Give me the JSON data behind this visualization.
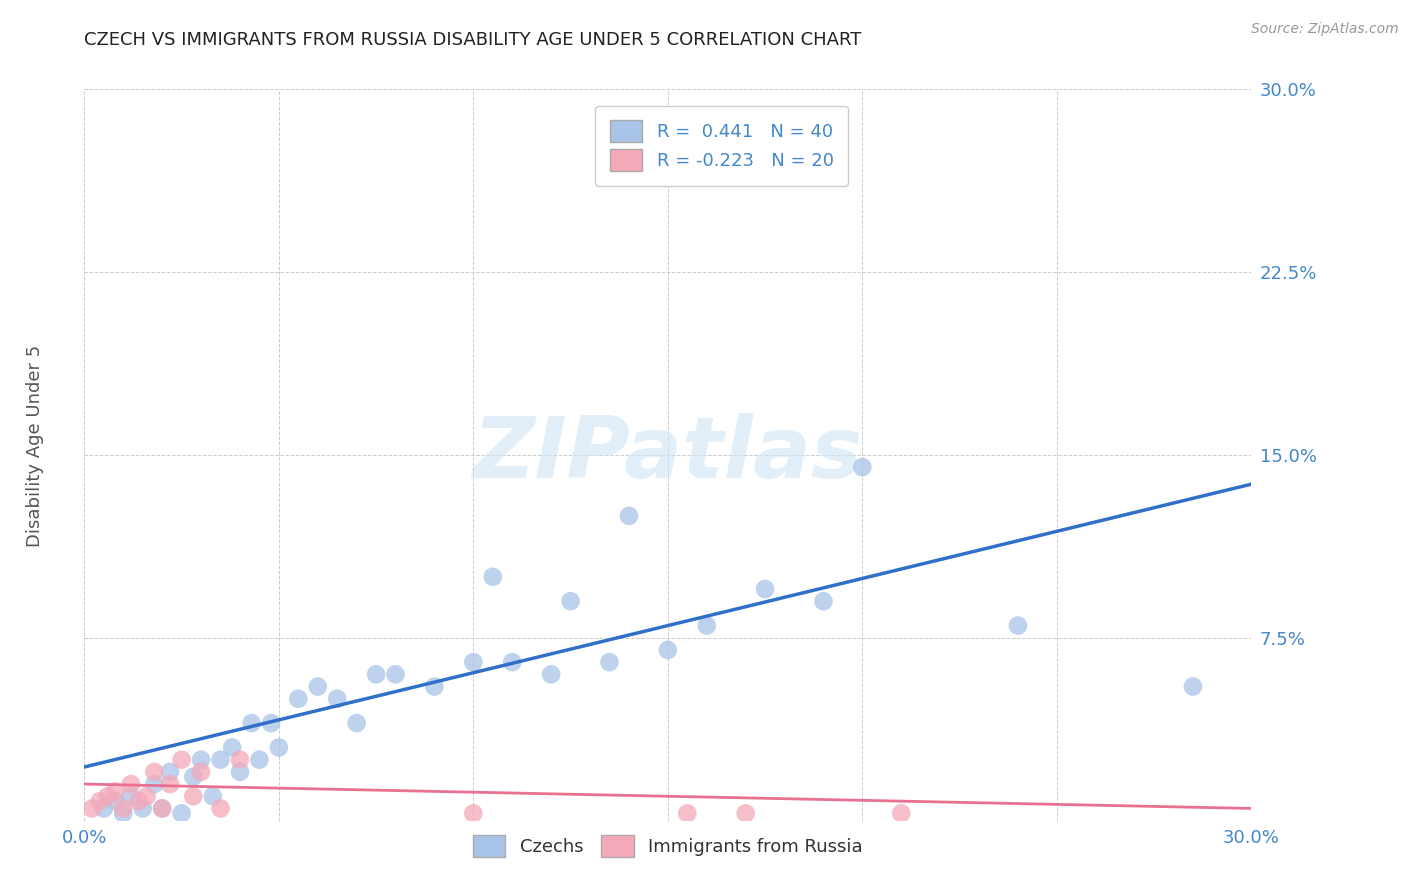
{
  "title": "CZECH VS IMMIGRANTS FROM RUSSIA DISABILITY AGE UNDER 5 CORRELATION CHART",
  "source": "Source: ZipAtlas.com",
  "ylabel": "Disability Age Under 5",
  "watermark": "ZIPatlas",
  "xlim": [
    0.0,
    0.3
  ],
  "ylim": [
    0.0,
    0.3
  ],
  "xticks": [
    0.0,
    0.05,
    0.1,
    0.15,
    0.2,
    0.25,
    0.3
  ],
  "yticks": [
    0.0,
    0.075,
    0.15,
    0.225,
    0.3
  ],
  "xticklabels": [
    "0.0%",
    "",
    "",
    "",
    "",
    "",
    "30.0%"
  ],
  "yticklabels": [
    "",
    "7.5%",
    "15.0%",
    "22.5%",
    "30.0%"
  ],
  "blue_R": 0.441,
  "blue_N": 40,
  "pink_R": -0.223,
  "pink_N": 20,
  "blue_color": "#a8c4e8",
  "pink_color": "#f4a8b8",
  "blue_line_color": "#3070c8",
  "pink_line_color": "#e87090",
  "grid_color": "#cccccc",
  "background_color": "#ffffff",
  "blue_scatter_x": [
    0.005,
    0.008,
    0.01,
    0.012,
    0.015,
    0.018,
    0.02,
    0.022,
    0.025,
    0.028,
    0.03,
    0.033,
    0.035,
    0.038,
    0.04,
    0.043,
    0.045,
    0.048,
    0.05,
    0.055,
    0.06,
    0.065,
    0.07,
    0.075,
    0.08,
    0.09,
    0.1,
    0.105,
    0.11,
    0.12,
    0.125,
    0.135,
    0.14,
    0.15,
    0.16,
    0.175,
    0.19,
    0.2,
    0.24,
    0.285
  ],
  "blue_scatter_y": [
    0.005,
    0.008,
    0.003,
    0.01,
    0.005,
    0.015,
    0.005,
    0.02,
    0.003,
    0.018,
    0.025,
    0.01,
    0.025,
    0.03,
    0.02,
    0.04,
    0.025,
    0.04,
    0.03,
    0.05,
    0.055,
    0.05,
    0.04,
    0.06,
    0.06,
    0.055,
    0.065,
    0.1,
    0.065,
    0.06,
    0.09,
    0.065,
    0.125,
    0.07,
    0.08,
    0.095,
    0.09,
    0.145,
    0.08,
    0.055
  ],
  "pink_scatter_x": [
    0.002,
    0.004,
    0.006,
    0.008,
    0.01,
    0.012,
    0.014,
    0.016,
    0.018,
    0.02,
    0.022,
    0.025,
    0.028,
    0.03,
    0.035,
    0.04,
    0.1,
    0.155,
    0.17,
    0.21
  ],
  "pink_scatter_y": [
    0.005,
    0.008,
    0.01,
    0.012,
    0.005,
    0.015,
    0.008,
    0.01,
    0.02,
    0.005,
    0.015,
    0.025,
    0.01,
    0.02,
    0.005,
    0.025,
    0.003,
    0.003,
    0.003,
    0.003
  ],
  "blue_line_x0": 0.0,
  "blue_line_y0": 0.022,
  "blue_line_x1": 0.3,
  "blue_line_y1": 0.138,
  "pink_line_x0": 0.0,
  "pink_line_y0": 0.015,
  "pink_line_x1": 0.3,
  "pink_line_y1": 0.005
}
